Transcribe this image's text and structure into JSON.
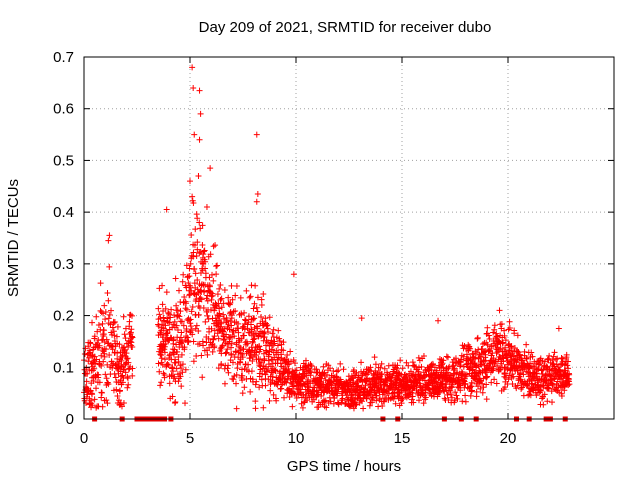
{
  "chart_data": {
    "type": "scatter",
    "title": "Day 209 of 2021, SRMTID for receiver dubo",
    "xlabel": "GPS time / hours",
    "ylabel": "SRMTID / TECUs",
    "xlim": [
      0,
      25
    ],
    "ylim": [
      0,
      0.7
    ],
    "x_ticks": [
      0,
      5,
      10,
      15,
      20
    ],
    "y_ticks": [
      0,
      0.1,
      0.2,
      0.3,
      0.4,
      0.5,
      0.6,
      0.7
    ],
    "x_tick_labels": [
      "0",
      "5",
      "10",
      "15",
      "20"
    ],
    "y_tick_labels": [
      "0",
      "0.1",
      "0.2",
      "0.3",
      "0.4",
      "0.5",
      "0.6",
      "0.7"
    ],
    "grid": true,
    "marker": "+",
    "color": "#ff0000",
    "zero_marker_color": "#e00000",
    "envelope": [
      {
        "t": 0.0,
        "base": 0.07,
        "spread": 0.1
      },
      {
        "t": 0.5,
        "base": 0.1,
        "spread": 0.12
      },
      {
        "t": 1.0,
        "base": 0.14,
        "spread": 0.17
      },
      {
        "t": 1.3,
        "base": 0.13,
        "spread": 0.16
      },
      {
        "t": 1.7,
        "base": 0.1,
        "spread": 0.12
      },
      {
        "t": 2.2,
        "base": 0.15,
        "spread": 0.08
      },
      {
        "t": 3.5,
        "base": 0.14,
        "spread": 0.12
      },
      {
        "t": 4.2,
        "base": 0.14,
        "spread": 0.14
      },
      {
        "t": 4.8,
        "base": 0.18,
        "spread": 0.16
      },
      {
        "t": 5.2,
        "base": 0.26,
        "spread": 0.2
      },
      {
        "t": 5.8,
        "base": 0.24,
        "spread": 0.16
      },
      {
        "t": 6.5,
        "base": 0.17,
        "spread": 0.12
      },
      {
        "t": 7.5,
        "base": 0.14,
        "spread": 0.12
      },
      {
        "t": 8.2,
        "base": 0.15,
        "spread": 0.14
      },
      {
        "t": 9.0,
        "base": 0.1,
        "spread": 0.1
      },
      {
        "t": 10.0,
        "base": 0.07,
        "spread": 0.06
      },
      {
        "t": 11.5,
        "base": 0.065,
        "spread": 0.05
      },
      {
        "t": 12.5,
        "base": 0.05,
        "spread": 0.05
      },
      {
        "t": 13.5,
        "base": 0.065,
        "spread": 0.06
      },
      {
        "t": 15.0,
        "base": 0.07,
        "spread": 0.05
      },
      {
        "t": 17.0,
        "base": 0.075,
        "spread": 0.05
      },
      {
        "t": 18.5,
        "base": 0.09,
        "spread": 0.07
      },
      {
        "t": 19.5,
        "base": 0.13,
        "spread": 0.08
      },
      {
        "t": 20.5,
        "base": 0.1,
        "spread": 0.07
      },
      {
        "t": 21.5,
        "base": 0.07,
        "spread": 0.06
      },
      {
        "t": 22.5,
        "base": 0.09,
        "spread": 0.06
      },
      {
        "t": 22.9,
        "base": 0.08,
        "spread": 0.04
      }
    ],
    "coverage": [
      [
        0.0,
        2.3
      ],
      [
        3.5,
        22.9
      ]
    ],
    "outliers": [
      {
        "x": 5.1,
        "y": 0.68
      },
      {
        "x": 5.15,
        "y": 0.64
      },
      {
        "x": 5.45,
        "y": 0.635
      },
      {
        "x": 5.5,
        "y": 0.59
      },
      {
        "x": 5.2,
        "y": 0.55
      },
      {
        "x": 5.45,
        "y": 0.54
      },
      {
        "x": 8.15,
        "y": 0.55
      },
      {
        "x": 5.95,
        "y": 0.485
      },
      {
        "x": 5.4,
        "y": 0.47
      },
      {
        "x": 5.0,
        "y": 0.46
      },
      {
        "x": 5.1,
        "y": 0.43
      },
      {
        "x": 8.2,
        "y": 0.435
      },
      {
        "x": 8.15,
        "y": 0.42
      },
      {
        "x": 3.9,
        "y": 0.405
      },
      {
        "x": 5.8,
        "y": 0.41
      },
      {
        "x": 1.2,
        "y": 0.355
      },
      {
        "x": 1.15,
        "y": 0.345
      },
      {
        "x": 9.9,
        "y": 0.28
      },
      {
        "x": 13.1,
        "y": 0.195
      },
      {
        "x": 16.7,
        "y": 0.19
      },
      {
        "x": 19.6,
        "y": 0.21
      },
      {
        "x": 22.4,
        "y": 0.175
      },
      {
        "x": 7.2,
        "y": 0.02
      },
      {
        "x": 3.8,
        "y": 0.08
      }
    ],
    "zero_points_x": [
      0.5,
      1.8,
      2.5,
      2.7,
      2.9,
      3.1,
      3.3,
      3.5,
      3.6,
      3.8,
      4.1,
      14.1,
      14.8,
      17.0,
      17.8,
      18.5,
      20.4,
      21.0,
      21.8,
      22.0,
      22.7
    ]
  }
}
